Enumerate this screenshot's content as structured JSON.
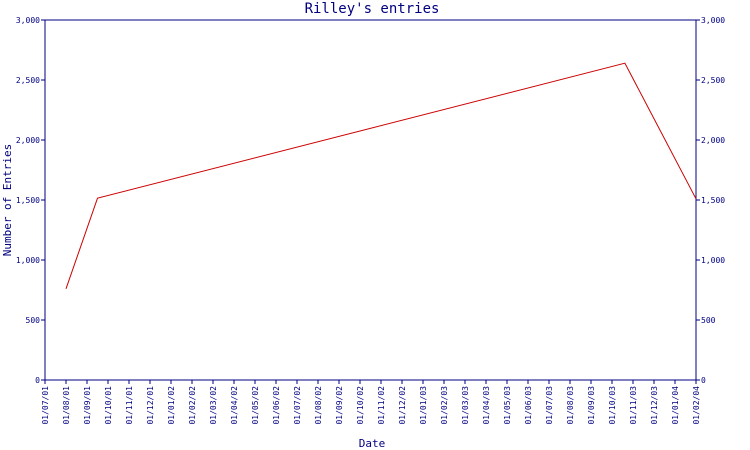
{
  "chart_data": {
    "type": "line",
    "title": "Rilley's entries",
    "xlabel": "Date",
    "ylabel": "Number of Entries",
    "ylim": [
      0,
      3000
    ],
    "y_ticks": [
      "0",
      "500",
      "1,000",
      "1,500",
      "2,000",
      "2,500",
      "3,000"
    ],
    "categories": [
      "01/07/01",
      "01/08/01",
      "01/09/01",
      "01/10/01",
      "01/11/01",
      "01/12/01",
      "01/01/02",
      "01/02/02",
      "01/03/02",
      "01/04/02",
      "01/05/02",
      "01/06/02",
      "01/07/02",
      "01/08/02",
      "01/09/02",
      "01/10/02",
      "01/11/02",
      "01/12/02",
      "01/01/03",
      "01/02/03",
      "01/03/03",
      "01/04/03",
      "01/05/03",
      "01/06/03",
      "01/07/03",
      "01/08/03",
      "01/09/03",
      "01/10/03",
      "01/11/03",
      "01/12/03",
      "01/01/04",
      "01/02/04"
    ],
    "grid": false,
    "series": [
      {
        "color": "#cc0000",
        "points": [
          {
            "x": "2001-08-01",
            "y": 760
          },
          {
            "x": "2001-09-16",
            "y": 1515
          },
          {
            "x": "2003-10-20",
            "y": 2640
          },
          {
            "x": "2004-02-01",
            "y": 1510
          }
        ]
      }
    ]
  }
}
